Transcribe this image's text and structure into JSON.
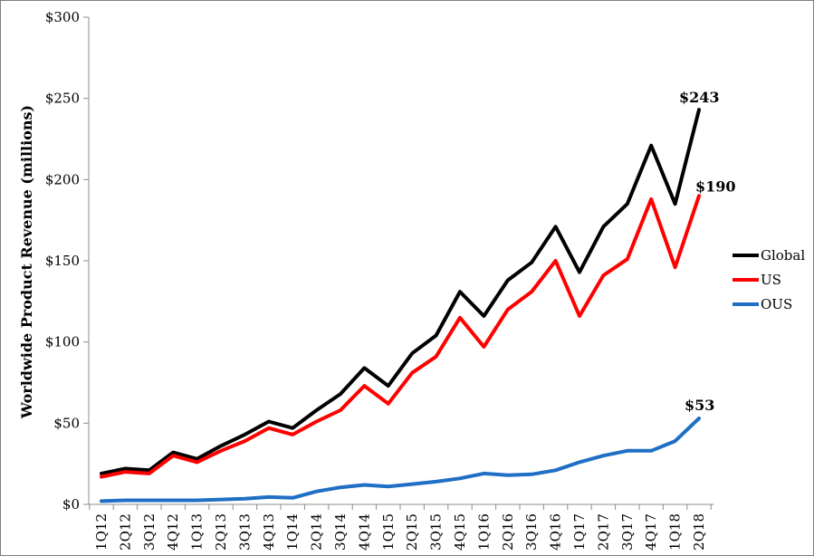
{
  "chart_data": {
    "type": "line",
    "title": "",
    "ylabel": "Worldwide Product Revenue (millions)",
    "xlabel": "",
    "ylim": [
      0,
      300
    ],
    "yticks": [
      0,
      50,
      100,
      150,
      200,
      250,
      300
    ],
    "ytick_labels": [
      "$0",
      "$50",
      "$100",
      "$150",
      "$200",
      "$250",
      "$300"
    ],
    "grid": false,
    "legend_position": "right",
    "categories": [
      "1Q12",
      "2Q12",
      "3Q12",
      "4Q12",
      "1Q13",
      "2Q13",
      "3Q13",
      "4Q13",
      "1Q14",
      "2Q14",
      "3Q14",
      "4Q14",
      "1Q15",
      "2Q15",
      "3Q15",
      "4Q15",
      "1Q16",
      "2Q16",
      "3Q16",
      "4Q16",
      "1Q17",
      "2Q17",
      "3Q17",
      "4Q17",
      "1Q18",
      "2Q18"
    ],
    "series": [
      {
        "name": "Global",
        "color": "#000000",
        "values": [
          19,
          22,
          21,
          32,
          28,
          36,
          43,
          51,
          47,
          58,
          68,
          84,
          73,
          93,
          104,
          131,
          116,
          138,
          149,
          171,
          143,
          171,
          185,
          221,
          185,
          243
        ]
      },
      {
        "name": "US",
        "color": "#ff0000",
        "values": [
          17,
          20,
          19,
          30,
          26,
          33,
          39,
          47,
          43,
          51,
          58,
          73,
          62,
          81,
          91,
          115,
          97,
          120,
          131,
          150,
          116,
          141,
          151,
          188,
          146,
          190
        ]
      },
      {
        "name": "OUS",
        "color": "#1f6fc5",
        "values": [
          2,
          2.5,
          2.5,
          2.5,
          2.5,
          3,
          3.5,
          4.5,
          4,
          8,
          10.5,
          12,
          11,
          12.5,
          14,
          16,
          19,
          18,
          18.5,
          21,
          26,
          30,
          33,
          33,
          39,
          53
        ]
      }
    ],
    "annotations": [
      {
        "series": "Global",
        "label": "$243"
      },
      {
        "series": "US",
        "label": "$190"
      },
      {
        "series": "OUS",
        "label": "$53"
      }
    ]
  }
}
